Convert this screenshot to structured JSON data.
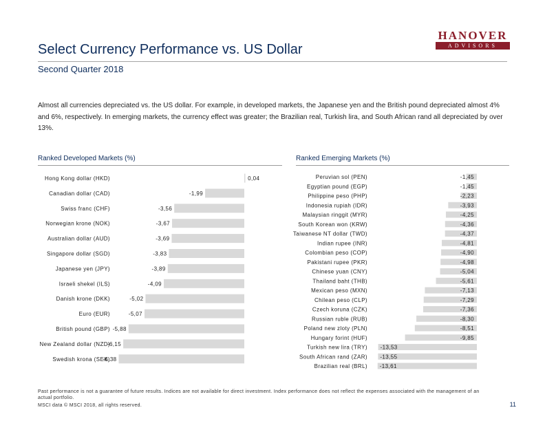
{
  "header": {
    "title": "Select Currency Performance vs. US Dollar",
    "subtitle": "Second Quarter 2018",
    "logo_top": "HANOVER",
    "logo_bottom": "ADVISORS"
  },
  "intro": "Almost all currencies depreciated vs. the US dollar. For example, in developed markets, the Japanese yen and the British pound depreciated almost 4% and 6%, respectively. In emerging markets, the currency effect was greater; the Brazilian real, Turkish lira, and South African rand all depreciated by over 13%.",
  "chart_data": [
    {
      "type": "bar",
      "orientation": "horizontal",
      "title": "Ranked Developed Markets (%)",
      "categories": [
        "Hong Kong dollar (HKD)",
        "Canadian dollar (CAD)",
        "Swiss franc (CHF)",
        "Norwegian krone (NOK)",
        "Australian dollar (AUD)",
        "Singapore dollar (SGD)",
        "Japanese yen (JPY)",
        "Israeli shekel (ILS)",
        "Danish krone (DKK)",
        "Euro (EUR)",
        "British pound (GBP)",
        "New Zealand dollar (NZD)",
        "Swedish krona (SEK)"
      ],
      "values": [
        0.04,
        -1.99,
        -3.56,
        -3.67,
        -3.69,
        -3.83,
        -3.89,
        -4.09,
        -5.02,
        -5.07,
        -5.88,
        -6.15,
        -6.38
      ],
      "labels": [
        "0,04",
        "-1,99",
        "-3,56",
        "-3,67",
        "-3,69",
        "-3,83",
        "-3,89",
        "-4,09",
        "-5,02",
        "-5,07",
        "-5,88",
        "-6,15",
        "-6,38"
      ],
      "xlim": [
        -6.6,
        0.1
      ],
      "bar_color": "#d9d9d9"
    },
    {
      "type": "bar",
      "orientation": "horizontal",
      "title": "Ranked Emerging Markets (%)",
      "categories": [
        "Peruvian sol (PEN)",
        "Egyptian pound (EGP)",
        "Philippine peso (PHP)",
        "Indonesia rupiah (IDR)",
        "Malaysian ringgit (MYR)",
        "South Korean won (KRW)",
        "Taiwanese NT dollar (TWD)",
        "Indian rupee (INR)",
        "Colombian peso (COP)",
        "Pakistani rupee (PKR)",
        "Chinese yuan (CNY)",
        "Thailand baht (THB)",
        "Mexican peso (MXN)",
        "Chilean peso (CLP)",
        "Czech koruna (CZK)",
        "Russian ruble (RUB)",
        "Poland new zloty (PLN)",
        "Hungary forint (HUF)",
        "Turkish new lira (TRY)",
        "South African rand (ZAR)",
        "Brazilian real (BRL)"
      ],
      "values": [
        -1.45,
        -1.45,
        -2.23,
        -3.93,
        -4.25,
        -4.36,
        -4.37,
        -4.81,
        -4.9,
        -4.98,
        -5.04,
        -5.61,
        -7.13,
        -7.29,
        -7.36,
        -8.3,
        -8.51,
        -9.85,
        -13.53,
        -13.55,
        -13.61
      ],
      "labels": [
        "-1,45",
        "-1,45",
        "-2,23",
        "-3,93",
        "-4,25",
        "-4,36",
        "-4,37",
        "-4,81",
        "-4,90",
        "-4,98",
        "-5,04",
        "-5,61",
        "-7,13",
        "-7,29",
        "-7,36",
        "-8,30",
        "-8,51",
        "-9,85",
        "-13,53",
        "-13,55",
        "-13,61"
      ],
      "xlim": [
        -14.3,
        0
      ],
      "bar_color": "#d9d9d9"
    }
  ],
  "footer": {
    "disclaimer": "Past performance is not a guarantee of future results. Indices are not available for direct investment. Index performance does not reflect the expenses associated with the management of an actual portfolio.",
    "copyright": "MSCI data © MSCI 2018, all rights reserved.",
    "page_number": "11"
  }
}
